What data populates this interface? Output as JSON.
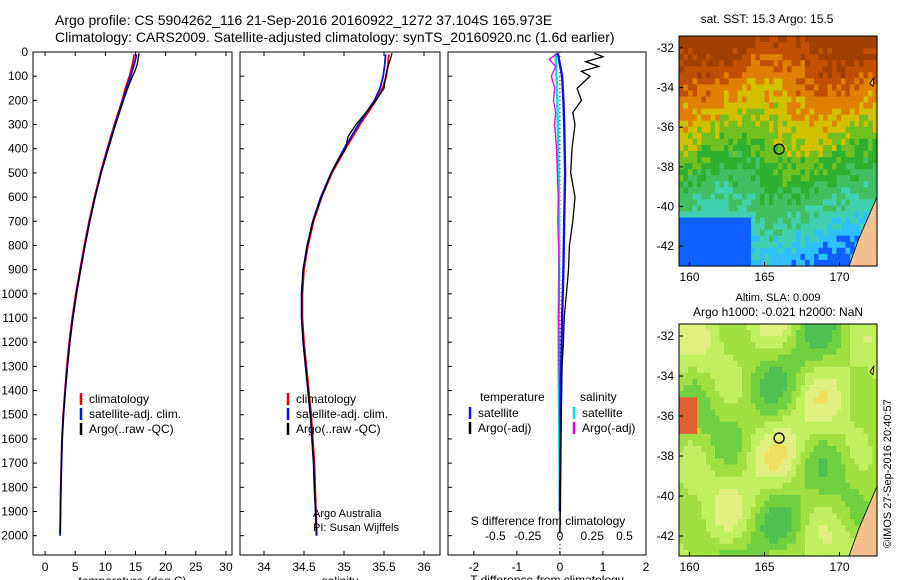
{
  "header": {
    "line1": "Argo profile: CS 5904262_116 21-Sep-2016 20160922_1272 37.104S 165.973E",
    "line2": "Climatology: CARS2009. Satellite-adjusted climatology: synTS_20160920.nc (1.6d earlier)"
  },
  "credit": "©IMOS 27-Sep-2016 20:40:57",
  "colors": {
    "climatology": "#e00000",
    "satellite": "#1010e0",
    "argo": "#000000",
    "sat_sal": "#00e0e0",
    "argo_sal": "#e000e0"
  },
  "chart_data": [
    {
      "type": "line",
      "id": "temperature",
      "xlabel": "temperature (deg C)",
      "ylabel": "",
      "xlim": [
        -2,
        31
      ],
      "ylim": [
        2080,
        0
      ],
      "y_inverted": true,
      "xticks": [
        0,
        5,
        10,
        15,
        20,
        25,
        30
      ],
      "yticks": [
        0,
        100,
        200,
        300,
        400,
        500,
        600,
        700,
        800,
        900,
        1000,
        1100,
        1200,
        1300,
        1400,
        1500,
        1600,
        1700,
        1800,
        1900,
        2000
      ],
      "legend_entries": [
        "climatology",
        "satellite-adj. clim.",
        "Argo(..raw -QC)"
      ],
      "series": [
        {
          "name": "climatology",
          "depth": [
            10,
            50,
            100,
            150,
            200,
            300,
            400,
            500,
            600,
            700,
            800,
            900,
            1000,
            1100,
            1200,
            1300,
            1400,
            1500,
            1600,
            1700,
            1800,
            1900,
            2000
          ],
          "values": [
            14.8,
            14.5,
            14.0,
            13.3,
            12.8,
            11.5,
            10.3,
            9.2,
            8.2,
            7.3,
            6.5,
            5.8,
            5.1,
            4.5,
            4.0,
            3.6,
            3.3,
            3.0,
            2.8,
            2.7,
            2.6,
            2.55,
            2.5
          ]
        },
        {
          "name": "satellite-adj. clim.",
          "depth": [
            10,
            50,
            100,
            150,
            200,
            300,
            400,
            500,
            600,
            700,
            800,
            900,
            1000,
            1100,
            1200,
            1300,
            1400,
            1500,
            1600,
            1700,
            1800,
            1900,
            2000
          ],
          "values": [
            15.2,
            14.8,
            14.2,
            13.5,
            12.9,
            11.6,
            10.4,
            9.3,
            8.3,
            7.4,
            6.6,
            5.9,
            5.2,
            4.6,
            4.1,
            3.7,
            3.35,
            3.05,
            2.85,
            2.72,
            2.62,
            2.56,
            2.5
          ]
        },
        {
          "name": "Argo(..raw -QC)",
          "depth": [
            5,
            20,
            50,
            80,
            100,
            150,
            200,
            300,
            400,
            500,
            600,
            700,
            800,
            900,
            1000,
            1100,
            1200,
            1300,
            1400,
            1500,
            1600,
            1700,
            1800,
            1900,
            1990
          ],
          "values": [
            15.6,
            15.5,
            15.3,
            14.9,
            14.5,
            13.7,
            13.0,
            11.7,
            10.5,
            9.3,
            8.3,
            7.4,
            6.6,
            5.9,
            5.2,
            4.6,
            4.1,
            3.7,
            3.35,
            3.05,
            2.85,
            2.72,
            2.62,
            2.56,
            2.5
          ]
        }
      ]
    },
    {
      "type": "line",
      "id": "salinity",
      "xlabel": "salinity",
      "ylabel": "",
      "xlim": [
        33.7,
        36.2
      ],
      "ylim": [
        2080,
        0
      ],
      "y_inverted": true,
      "xticks": [
        34,
        34.5,
        35,
        35.5,
        36
      ],
      "legend_entries": [
        "climatology",
        "satellite-adj. clim.",
        "Argo(..raw -QC)"
      ],
      "annotation_line1": "Argo Australia",
      "annotation_line2": "PI: Susan Wijffels",
      "series": [
        {
          "name": "climatology",
          "depth": [
            10,
            50,
            100,
            150,
            200,
            300,
            400,
            500,
            600,
            700,
            800,
            900,
            1000,
            1100,
            1200,
            1300,
            1400,
            1500,
            1600,
            1700,
            1800,
            1900,
            2000
          ],
          "values": [
            35.56,
            35.55,
            35.53,
            35.48,
            35.4,
            35.2,
            35.02,
            34.85,
            34.72,
            34.62,
            34.55,
            34.5,
            34.48,
            34.48,
            34.5,
            34.53,
            34.56,
            34.59,
            34.61,
            34.63,
            34.64,
            34.65,
            34.66
          ]
        },
        {
          "name": "satellite-adj. clim.",
          "depth": [
            10,
            50,
            100,
            150,
            200,
            300,
            400,
            500,
            600,
            700,
            800,
            900,
            1000,
            1100,
            1200,
            1300,
            1400,
            1500,
            1600,
            1700,
            1800,
            1900,
            2000
          ],
          "values": [
            35.52,
            35.51,
            35.49,
            35.45,
            35.38,
            35.18,
            35.0,
            34.84,
            34.71,
            34.61,
            34.54,
            34.49,
            34.47,
            34.47,
            34.49,
            34.52,
            34.55,
            34.58,
            34.6,
            34.62,
            34.63,
            34.645,
            34.655
          ]
        },
        {
          "name": "Argo(..raw -QC)",
          "depth": [
            5,
            30,
            60,
            100,
            150,
            200,
            300,
            350,
            400,
            450,
            500,
            600,
            700,
            800,
            900,
            1000,
            1100,
            1200,
            1300,
            1400,
            1500,
            1600,
            1700,
            1800,
            1900,
            1990
          ],
          "values": [
            35.6,
            35.58,
            35.55,
            35.52,
            35.5,
            35.4,
            35.15,
            35.05,
            35.02,
            34.92,
            34.84,
            34.72,
            34.61,
            34.54,
            34.49,
            34.47,
            34.47,
            34.49,
            34.52,
            34.55,
            34.58,
            34.6,
            34.62,
            34.63,
            34.645,
            34.655
          ]
        }
      ]
    },
    {
      "type": "line",
      "id": "difference",
      "xlabel": "T difference from climatology",
      "top_label": "S difference from climatology",
      "xlim": [
        -2.6,
        2.0
      ],
      "ylim": [
        2080,
        0
      ],
      "y_inverted": true,
      "xticks": [
        -2,
        -1,
        0,
        1,
        2
      ],
      "top_ticks": [
        "-0.5",
        "-0.25",
        "0",
        "0.25",
        "0.5"
      ],
      "top_tick_t": [
        -1.5,
        -0.75,
        0,
        0.75,
        1.5
      ],
      "legend": {
        "temperature_title": "temperature",
        "salinity_title": "salinity",
        "entries": [
          [
            "satellite",
            "satellite"
          ],
          [
            "Argo(-adj)",
            "Argo(-adj)"
          ]
        ]
      },
      "series": [
        {
          "name": "satellite (temperature)",
          "depth": [
            5,
            100,
            200,
            300,
            500,
            700,
            900,
            1100,
            1300,
            1500,
            1700,
            1900
          ],
          "values": [
            -0.05,
            0.05,
            0.08,
            0.1,
            0.12,
            0.1,
            0.08,
            0.05,
            0.03,
            0.02,
            0.01,
            0.0
          ]
        },
        {
          "name": "Argo(-adj) (temperature)",
          "depth": [
            5,
            20,
            40,
            60,
            80,
            100,
            150,
            200,
            250,
            300,
            400,
            500,
            600,
            700,
            800,
            900,
            1000,
            1100,
            1200,
            1300,
            1400,
            1500,
            1600,
            1700,
            1800,
            1900,
            1990
          ],
          "values": [
            0.8,
            1.0,
            0.6,
            0.9,
            0.5,
            0.7,
            0.4,
            0.5,
            0.3,
            0.35,
            0.28,
            0.25,
            0.35,
            0.3,
            0.22,
            0.2,
            0.15,
            0.1,
            0.08,
            0.05,
            0.04,
            0.03,
            0.02,
            0.02,
            0.01,
            0.01,
            0.0
          ]
        },
        {
          "name": "satellite (salinity)",
          "depth": [
            5,
            100,
            200,
            300,
            500,
            700,
            900,
            1100,
            1300,
            1500,
            1700,
            1900
          ],
          "values": [
            -0.1,
            -0.08,
            -0.06,
            -0.05,
            -0.03,
            -0.02,
            -0.02,
            -0.03,
            -0.03,
            -0.02,
            -0.01,
            0.0
          ]
        },
        {
          "name": "Argo(-adj) (salinity)",
          "depth": [
            5,
            30,
            60,
            100,
            150,
            200,
            250,
            300,
            400,
            500,
            600,
            700,
            800,
            900,
            1000,
            1100,
            1200,
            1300,
            1400,
            1500,
            1600,
            1700,
            1800,
            1900,
            1990
          ],
          "values": [
            -0.05,
            -0.25,
            -0.1,
            -0.2,
            -0.12,
            -0.15,
            -0.1,
            -0.12,
            -0.08,
            -0.06,
            -0.04,
            -0.05,
            -0.03,
            -0.02,
            -0.02,
            -0.03,
            -0.02,
            -0.02,
            -0.01,
            -0.01,
            0.0,
            0.0,
            0.0,
            0.0,
            0.0
          ]
        }
      ]
    },
    {
      "type": "heatmap",
      "id": "sst_map",
      "title": "sat. SST: 15.3 Argo: 15.5",
      "xlim": [
        159.3,
        172.5
      ],
      "ylim": [
        -43,
        -31.4
      ],
      "xticks": [
        160,
        165,
        170
      ],
      "yticks": [
        -32,
        -34,
        -36,
        -38,
        -40,
        -42
      ],
      "argo_lon": 165.973,
      "argo_lat": -37.104,
      "colorscale": [
        "#1060ff",
        "#30c0ff",
        "#40d0b0",
        "#40c060",
        "#30b030",
        "#70c020",
        "#d0c000",
        "#e08000",
        "#c05000",
        "#a04000"
      ],
      "land_color": "#f5c090"
    },
    {
      "type": "heatmap",
      "id": "sla_map",
      "title_line1": "Altim. SLA: 0.009",
      "title_line2": "Argo h1000: -0.021 h2000: NaN",
      "xlim": [
        159.3,
        172.5
      ],
      "ylim": [
        -43,
        -31.4
      ],
      "xticks": [
        160,
        165,
        170
      ],
      "yticks": [
        -32,
        -34,
        -36,
        -38,
        -40,
        -42
      ],
      "argo_lon": 165.973,
      "argo_lat": -37.104,
      "colorscale": [
        "#40a040",
        "#50c050",
        "#70d040",
        "#a0e040",
        "#c0f060",
        "#e0f080",
        "#f0e060",
        "#f0b040",
        "#e06030"
      ],
      "land_color": "#f5c090"
    }
  ]
}
